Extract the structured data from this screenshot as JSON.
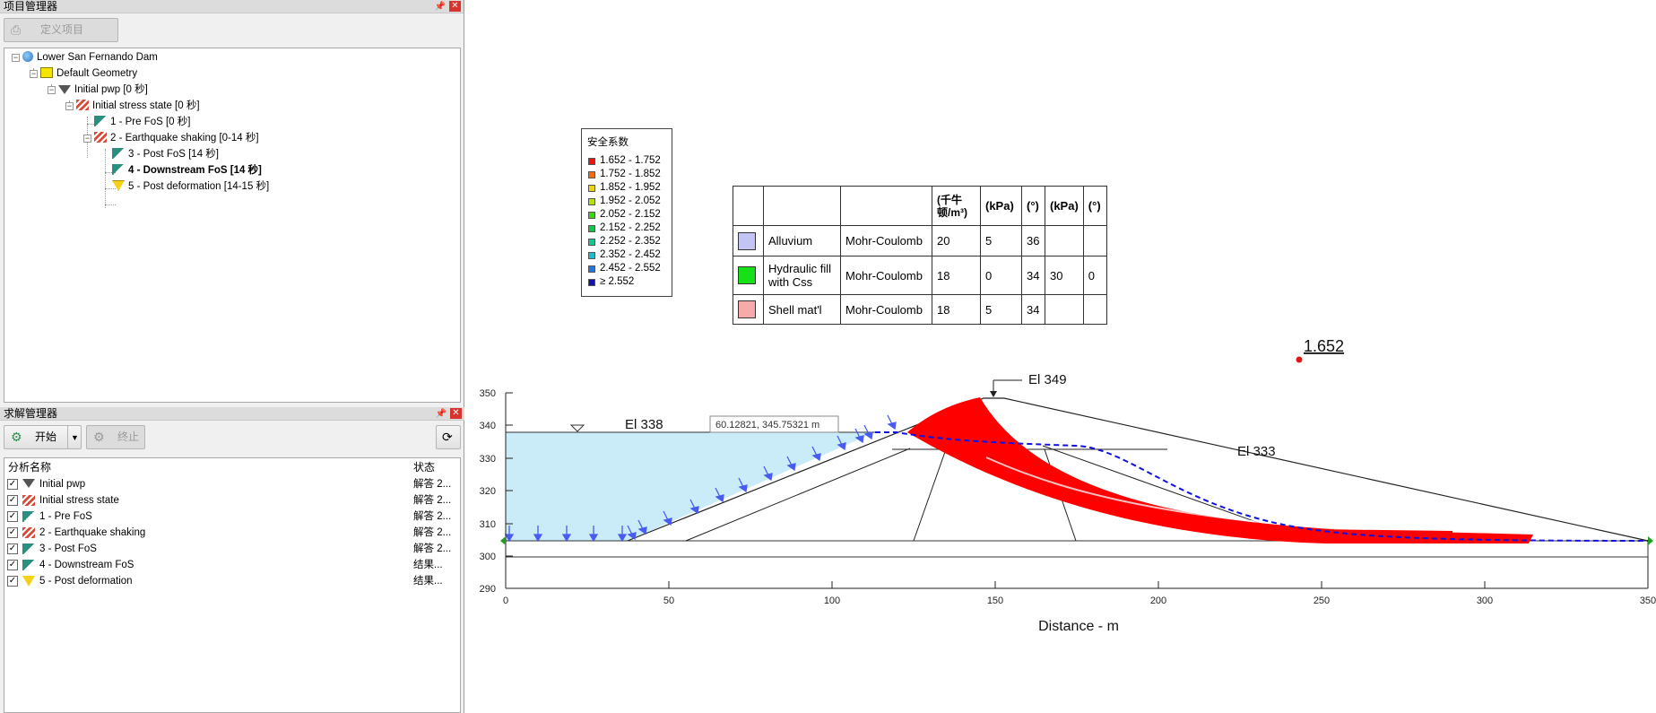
{
  "project_manager": {
    "title": "项目管理器",
    "define_button": "定义项目",
    "tree": [
      {
        "label": "Lower San Fernando Dam"
      },
      {
        "label": "Default Geometry"
      },
      {
        "label": "Initial pwp [0 秒]"
      },
      {
        "label": "Initial stress state [0 秒]"
      },
      {
        "label": "1 - Pre FoS [0 秒]"
      },
      {
        "label": "2 - Earthquake shaking [0-14 秒]"
      },
      {
        "label": "3 - Post FoS [14 秒]"
      },
      {
        "label": "4 - Downstream FoS [14 秒]"
      },
      {
        "label": "5 - Post deformation [14-15 秒]"
      }
    ]
  },
  "solve_manager": {
    "title": "求解管理器",
    "start_button": "开始",
    "stop_button": "终止",
    "col_name": "分析名称",
    "col_status": "状态",
    "rows": [
      {
        "name": "Initial pwp",
        "status": "解答 2...",
        "checked": true
      },
      {
        "name": "Initial stress state",
        "status": "解答 2...",
        "checked": true
      },
      {
        "name": "1 - Pre FoS",
        "status": "解答 2...",
        "checked": true
      },
      {
        "name": "2 - Earthquake shaking",
        "status": "解答 2...",
        "checked": true
      },
      {
        "name": "3 - Post FoS",
        "status": "解答 2...",
        "checked": true
      },
      {
        "name": "4 - Downstream FoS",
        "status": "结果...",
        "checked": true
      },
      {
        "name": "5 - Post deformation",
        "status": "结果...",
        "checked": true
      }
    ]
  },
  "legend": {
    "title": "安全系数",
    "items": [
      {
        "label": "1.652 - 1.752",
        "color": "#e8160c"
      },
      {
        "label": "1.752 - 1.852",
        "color": "#f26b0c"
      },
      {
        "label": "1.852 - 1.952",
        "color": "#f0d20a"
      },
      {
        "label": "1.952 - 2.052",
        "color": "#b4e00c"
      },
      {
        "label": "2.052 - 2.152",
        "color": "#3fd21e"
      },
      {
        "label": "2.152 - 2.252",
        "color": "#18c24c"
      },
      {
        "label": "2.252 - 2.352",
        "color": "#18c48e"
      },
      {
        "label": "2.352 - 2.452",
        "color": "#1cbec8"
      },
      {
        "label": "2.452 - 2.552",
        "color": "#2a72dc"
      },
      {
        "label": "≥ 2.552",
        "color": "#1412a8"
      }
    ]
  },
  "materials": {
    "headers": [
      "",
      "",
      "",
      "(千牛顿/m³)",
      "(kPa)",
      "(°)",
      "(kPa)",
      "(°)"
    ],
    "rows": [
      {
        "color": "#c4c4f2",
        "name": "Alluvium",
        "model": "Mohr-Coulomb",
        "c1": "20",
        "c2": "5",
        "c3": "36",
        "c4": "",
        "c5": ""
      },
      {
        "color": "#18e018",
        "name": "Hydraulic fill with Css",
        "model": "Mohr-Coulomb",
        "c1": "18",
        "c2": "0",
        "c3": "34",
        "c4": "30",
        "c5": "0"
      },
      {
        "color": "#f7aaaa",
        "name": "Shell mat'l",
        "model": "Mohr-Coulomb",
        "c1": "18",
        "c2": "5",
        "c3": "34",
        "c4": "",
        "c5": ""
      }
    ]
  },
  "drawing": {
    "fos_label": "1.652",
    "el349": "El 349",
    "el338": "El 338",
    "el333": "El 333",
    "coord_readout": "60.12821, 345.75321 m",
    "x_axis_label": "Distance - m",
    "x_ticks": [
      "0",
      "50",
      "100",
      "150",
      "200",
      "250",
      "300",
      "350"
    ],
    "y_ticks": [
      "350",
      "340",
      "330",
      "320",
      "310",
      "300",
      "290"
    ]
  },
  "colors": {
    "reservoir": "#c9ecf8",
    "slip_band": "#ff0000",
    "phreatic": "#1010e0",
    "arrows": "#4a5cf0"
  }
}
